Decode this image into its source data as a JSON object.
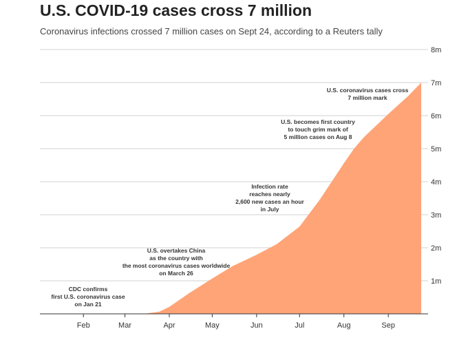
{
  "header": {
    "title": "U.S. COVID-19 cases cross 7 million",
    "subtitle": "Coronavirus infections crossed 7 million cases on Sept 24, according to a Reuters tally"
  },
  "chart_data": {
    "type": "area",
    "title": "U.S. COVID-19 cases cross 7 million",
    "subtitle": "Coronavirus infections crossed 7 million cases on Sept 24, according to a Reuters tally",
    "xlabel": "",
    "ylabel": "",
    "ylim": [
      0,
      8000000
    ],
    "xlim": [
      "2020-01-21",
      "2020-09-24"
    ],
    "grid": true,
    "legend": "none",
    "fill_color": "#FFA477",
    "x_ticks": [
      {
        "date": "2020-02-01",
        "label": "Feb"
      },
      {
        "date": "2020-03-01",
        "label": "Mar"
      },
      {
        "date": "2020-04-01",
        "label": "Apr"
      },
      {
        "date": "2020-05-01",
        "label": "May"
      },
      {
        "date": "2020-06-01",
        "label": "Jun"
      },
      {
        "date": "2020-07-01",
        "label": "Jul"
      },
      {
        "date": "2020-08-01",
        "label": "Aug"
      },
      {
        "date": "2020-09-01",
        "label": "Sep"
      }
    ],
    "y_ticks": [
      {
        "value": 1000000,
        "label": "1m"
      },
      {
        "value": 2000000,
        "label": "2m"
      },
      {
        "value": 3000000,
        "label": "3m"
      },
      {
        "value": 4000000,
        "label": "4m"
      },
      {
        "value": 5000000,
        "label": "5m"
      },
      {
        "value": 6000000,
        "label": "6m"
      },
      {
        "value": 7000000,
        "label": "7m"
      },
      {
        "value": 8000000,
        "label": "8m"
      }
    ],
    "series": [
      {
        "points": [
          {
            "x": "2020-01-21",
            "y": 1
          },
          {
            "x": "2020-02-15",
            "y": 15
          },
          {
            "x": "2020-03-01",
            "y": 75
          },
          {
            "x": "2020-03-15",
            "y": 3500
          },
          {
            "x": "2020-03-25",
            "y": 65000
          },
          {
            "x": "2020-04-01",
            "y": 210000
          },
          {
            "x": "2020-04-15",
            "y": 630000
          },
          {
            "x": "2020-05-01",
            "y": 1070000
          },
          {
            "x": "2020-05-15",
            "y": 1440000
          },
          {
            "x": "2020-06-01",
            "y": 1790000
          },
          {
            "x": "2020-06-15",
            "y": 2110000
          },
          {
            "x": "2020-07-01",
            "y": 2640000
          },
          {
            "x": "2020-07-15",
            "y": 3450000
          },
          {
            "x": "2020-08-01",
            "y": 4560000
          },
          {
            "x": "2020-08-08",
            "y": 5000000
          },
          {
            "x": "2020-08-15",
            "y": 5350000
          },
          {
            "x": "2020-09-01",
            "y": 6050000
          },
          {
            "x": "2020-09-15",
            "y": 6600000
          },
          {
            "x": "2020-09-24",
            "y": 7000000
          }
        ]
      }
    ],
    "annotations": [
      {
        "lines": [
          "CDC confirms",
          "first U.S. coronavirus case",
          "on Jan 21"
        ]
      },
      {
        "lines": [
          "U.S. overtakes China",
          "as the country with",
          "the most coronavirus cases worldwide",
          "on March 26"
        ]
      },
      {
        "lines": [
          "Infection rate",
          "reaches nearly",
          "2,600 new cases an hour",
          "in July"
        ]
      },
      {
        "lines": [
          "U.S. becomes first country",
          "to touch grim mark of",
          "5 million cases on Aug 8"
        ]
      },
      {
        "lines": [
          "U.S. coronavirus cases cross",
          "7 million mark"
        ]
      }
    ]
  }
}
